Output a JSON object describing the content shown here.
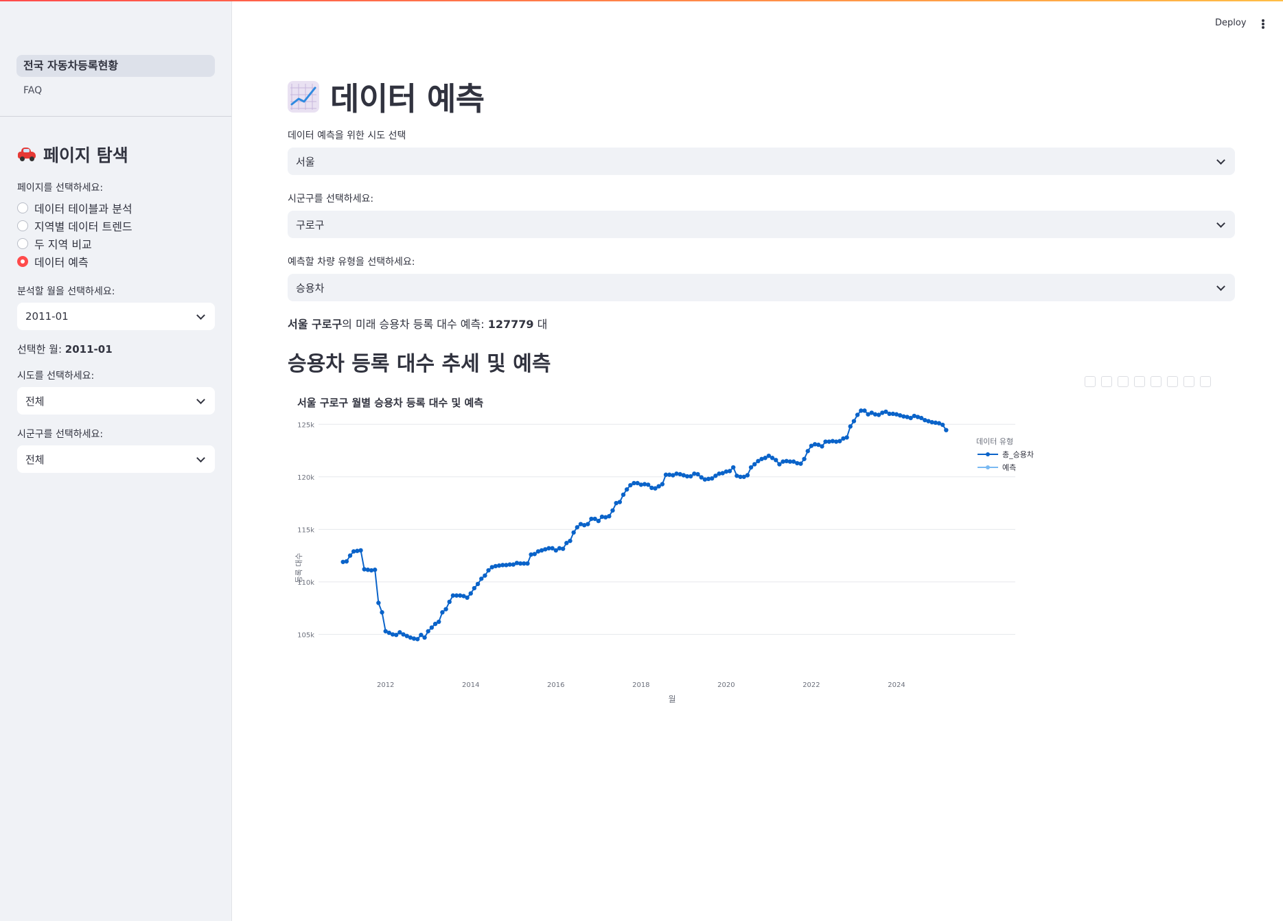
{
  "sidebar": {
    "nav": [
      {
        "label": "전국 자동차등록현황",
        "active": true
      },
      {
        "label": "FAQ",
        "active": false
      }
    ],
    "section_title": "페이지 탐색",
    "section_icon": "car-icon",
    "page_select_label": "페이지를 선택하세요:",
    "pages": [
      {
        "label": "데이터 테이블과 분석",
        "selected": false
      },
      {
        "label": "지역별 데이터 트렌드",
        "selected": false
      },
      {
        "label": "두 지역 비교",
        "selected": false
      },
      {
        "label": "데이터 예측",
        "selected": true
      }
    ],
    "month_label": "분석할 월을 선택하세요:",
    "month_value": "2011-01",
    "selected_month_prefix": "선택한 월: ",
    "selected_month_value": "2011-01",
    "sido_label": "시도를 선택하세요:",
    "sido_value": "전체",
    "sigungu_label": "시군구를 선택하세요:",
    "sigungu_value": "전체"
  },
  "header": {
    "deploy_label": "Deploy",
    "menu_icon": "kebab-menu-icon"
  },
  "main": {
    "title": "데이터 예측",
    "title_icon": "chart-increasing-icon",
    "sido_label": "데이터 예측을 위한 시도 선택",
    "sido_value": "서울",
    "sigungu_label": "시군구를 선택하세요:",
    "sigungu_value": "구로구",
    "vehicle_label": "예측할 차량 유형을 선택하세요:",
    "vehicle_value": "승용차",
    "prediction": {
      "region": "서울 구로구",
      "middle": "의 미래 승용차 등록 대수 예측: ",
      "value": "127779",
      "unit": " 대"
    },
    "subheader": "승용차 등록 대수 추세 및 예측"
  },
  "chart_data": {
    "type": "line",
    "title": "서울 구로구 월별 승용차 등록 대수 및 예측",
    "xlabel": "월",
    "ylabel": "등록 대수",
    "xlim": [
      "2010-09",
      "2025-07"
    ],
    "ylim": [
      103000,
      127500
    ],
    "x_ticks": [
      "2012",
      "2014",
      "2016",
      "2018",
      "2020",
      "2022",
      "2024"
    ],
    "y_ticks": [
      {
        "value": 105000,
        "label": "105k"
      },
      {
        "value": 110000,
        "label": "110k"
      },
      {
        "value": 115000,
        "label": "115k"
      },
      {
        "value": 120000,
        "label": "120k"
      },
      {
        "value": 125000,
        "label": "125k"
      }
    ],
    "grid": "horizontal",
    "legend": {
      "title": "데이터 유형",
      "position": "top-right"
    },
    "series": [
      {
        "name": "총_승용차",
        "color": "#0a63c9",
        "start": "2011-01",
        "values": [
          111900,
          111950,
          112500,
          112900,
          112950,
          113000,
          111200,
          111150,
          111100,
          111150,
          108000,
          107100,
          105300,
          105150,
          105000,
          104950,
          105200,
          105000,
          104850,
          104700,
          104600,
          104550,
          104950,
          104700,
          105300,
          105650,
          106000,
          106200,
          107100,
          107400,
          108100,
          108700,
          108700,
          108700,
          108650,
          108500,
          108900,
          109400,
          109800,
          110300,
          110600,
          111100,
          111400,
          111500,
          111550,
          111600,
          111600,
          111650,
          111650,
          111800,
          111750,
          111750,
          111750,
          112600,
          112650,
          112900,
          113000,
          113100,
          113200,
          113200,
          113000,
          113200,
          113150,
          113700,
          113900,
          114700,
          115200,
          115500,
          115400,
          115500,
          116000,
          116000,
          115800,
          116200,
          116150,
          116250,
          116800,
          117500,
          117600,
          118300,
          118800,
          119200,
          119400,
          119400,
          119250,
          119300,
          119250,
          118950,
          118900,
          119100,
          119300,
          120200,
          120200,
          120150,
          120300,
          120250,
          120150,
          120050,
          120050,
          120300,
          120250,
          119950,
          119750,
          119800,
          119850,
          120100,
          120300,
          120350,
          120500,
          120550,
          120900,
          120100,
          120000,
          120000,
          120150,
          120900,
          121200,
          121500,
          121700,
          121800,
          122000,
          121800,
          121600,
          121200,
          121450,
          121500,
          121450,
          121450,
          121300,
          121250,
          121700,
          122450,
          122950,
          123100,
          123050,
          122900,
          123350,
          123350,
          123400,
          123350,
          123400,
          123650,
          123750,
          124800,
          125300,
          125900,
          126300,
          126300,
          125950,
          126100,
          125950,
          125900,
          126100,
          126200,
          126000,
          126000,
          125950,
          125850,
          125750,
          125700,
          125600,
          125800,
          125700,
          125600,
          125400,
          125300,
          125200,
          125150,
          125100,
          124950,
          124450
        ]
      },
      {
        "name": "예측",
        "color": "#79b9f2",
        "values": []
      }
    ]
  }
}
